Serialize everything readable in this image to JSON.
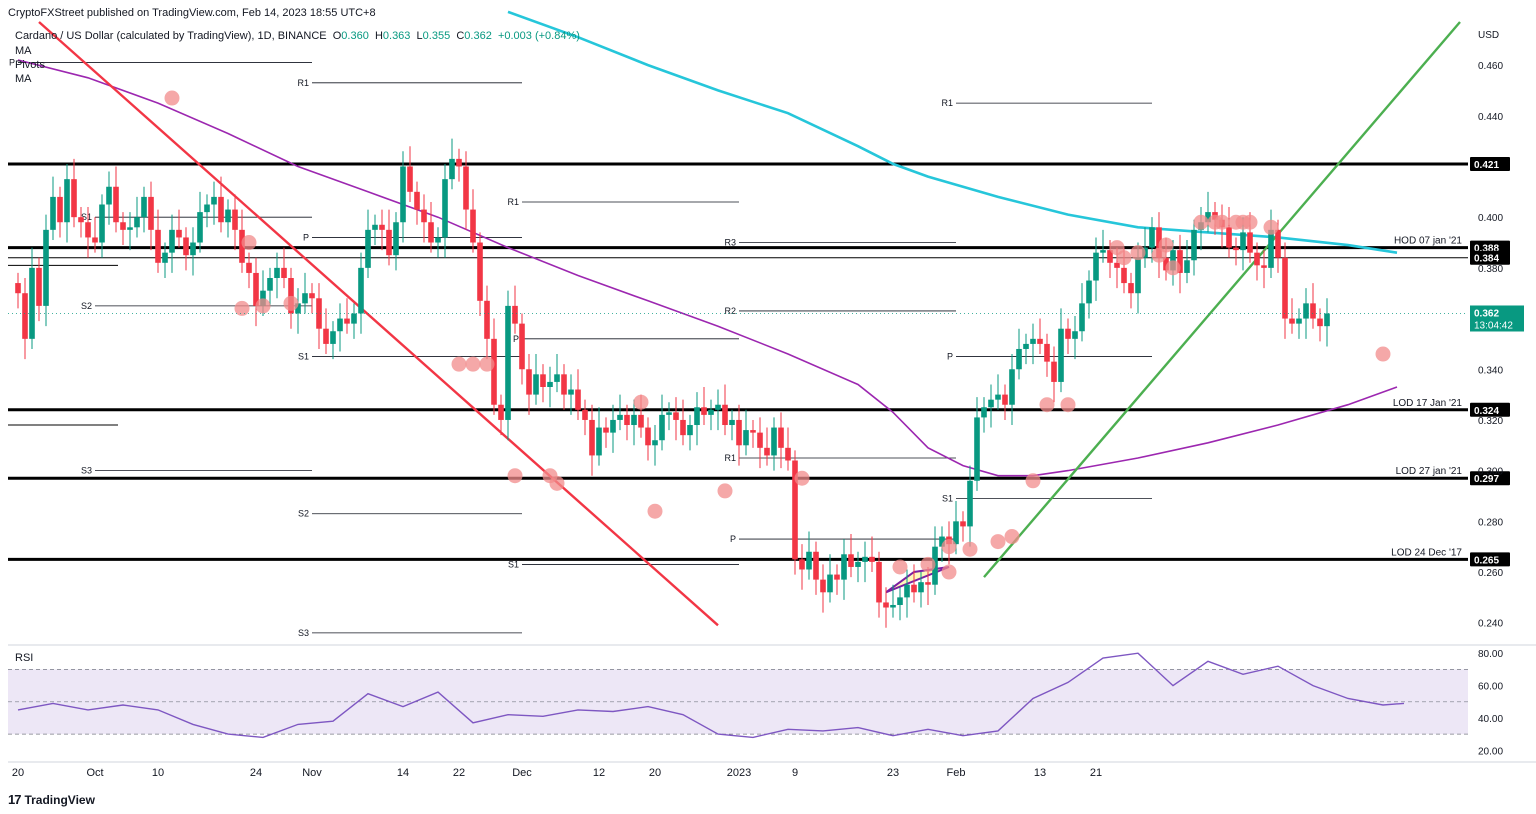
{
  "header": {
    "published": "CryptoFXStreet published on TradingView.com, Feb 14, 2023 18:55 UTC+8",
    "symbol": "Cardano / US Dollar (calculated by TradingView), 1D, BINANCE",
    "o_label": "O",
    "o": "0.360",
    "h_label": "H",
    "h": "0.363",
    "l_label": "L",
    "l": "0.355",
    "c_label": "C",
    "c": "0.362",
    "change": "+0.003 (+0.84%)",
    "indicators": [
      "MA",
      "Pivots",
      "MA"
    ]
  },
  "brand": {
    "logo": "17",
    "name": "TradingView"
  },
  "colors": {
    "up": "#089981",
    "down": "#f23645",
    "ma_fast": "#9c27b0",
    "ma_slow": "#26c6da",
    "trend_down": "#f23645",
    "trend_up": "#4caf50",
    "circle": "#f28b8b",
    "rsi": "#7e57c2",
    "rsi_band": "#ede7f6"
  },
  "chart_data": {
    "type": "candlestick",
    "currency": "USD",
    "ylim": [
      0.232,
      0.477
    ],
    "y_ticks": [
      "0.460",
      "0.440",
      "0.400",
      "0.380",
      "0.340",
      "0.320",
      "0.300",
      "0.280",
      "0.260",
      "0.240"
    ],
    "x_ticks": [
      "20",
      "Oct",
      "10",
      "24",
      "Nov",
      "14",
      "22",
      "Dec",
      "12",
      "20",
      "2023",
      "9",
      "23",
      "Feb",
      "13",
      "21"
    ],
    "x_tick_dates": [
      "2022-09-20",
      "2022-10-01",
      "2022-10-10",
      "2022-10-24",
      "2022-11-01",
      "2022-11-14",
      "2022-11-22",
      "2022-12-01",
      "2022-12-12",
      "2022-12-20",
      "2023-01-01",
      "2023-01-09",
      "2023-01-23",
      "2023-02-01",
      "2023-02-13",
      "2023-02-21"
    ],
    "first_date": "2022-09-20",
    "last_price": {
      "value": 0.362,
      "label": "0.362",
      "countdown": "13:04:42"
    },
    "key_levels": [
      {
        "value": 0.421,
        "label": "0.421",
        "note": ""
      },
      {
        "value": 0.388,
        "label": "0.388",
        "note": "HOD 07 jan '21"
      },
      {
        "value": 0.384,
        "label": "0.384",
        "note": ""
      },
      {
        "value": 0.324,
        "label": "0.324",
        "note": "LOD 17 Jan '21"
      },
      {
        "value": 0.297,
        "label": "0.297",
        "note": "LOD 27 jan '21"
      },
      {
        "value": 0.265,
        "label": "0.265",
        "note": "LOD 24 Dec '17"
      }
    ],
    "pivots": [
      {
        "label": "P",
        "value": 0.461,
        "from": "2022-09-20",
        "to": "2022-11-01"
      },
      {
        "label": "S1",
        "value": 0.4,
        "from": "2022-10-01",
        "to": "2022-11-01"
      },
      {
        "label": "S2",
        "value": 0.365,
        "from": "2022-10-01",
        "to": "2022-11-01"
      },
      {
        "label": "S3",
        "value": 0.3,
        "from": "2022-10-01",
        "to": "2022-11-01"
      },
      {
        "label": "R1",
        "value": 0.453,
        "from": "2022-11-01",
        "to": "2022-12-01"
      },
      {
        "label": "P",
        "value": 0.392,
        "from": "2022-11-01",
        "to": "2022-12-01"
      },
      {
        "label": "S1",
        "value": 0.345,
        "from": "2022-11-01",
        "to": "2022-12-01"
      },
      {
        "label": "S2",
        "value": 0.283,
        "from": "2022-11-01",
        "to": "2022-12-01"
      },
      {
        "label": "S3",
        "value": 0.236,
        "from": "2022-11-01",
        "to": "2022-12-01"
      },
      {
        "label": "R1",
        "value": 0.406,
        "from": "2022-12-01",
        "to": "2023-01-01"
      },
      {
        "label": "P",
        "value": 0.352,
        "from": "2022-12-01",
        "to": "2023-01-01"
      },
      {
        "label": "S1",
        "value": 0.263,
        "from": "2022-12-01",
        "to": "2023-01-01"
      },
      {
        "label": "R3",
        "value": 0.39,
        "from": "2023-01-01",
        "to": "2023-02-01"
      },
      {
        "label": "R2",
        "value": 0.363,
        "from": "2023-01-01",
        "to": "2023-02-01"
      },
      {
        "label": "R1",
        "value": 0.305,
        "from": "2023-01-01",
        "to": "2023-02-01"
      },
      {
        "label": "P",
        "value": 0.273,
        "from": "2023-01-01",
        "to": "2023-02-01"
      },
      {
        "label": "R1",
        "value": 0.445,
        "from": "2023-02-01",
        "to": "2023-03-01"
      },
      {
        "label": "P",
        "value": 0.345,
        "from": "2023-02-01",
        "to": "2023-03-01"
      },
      {
        "label": "S1",
        "value": 0.289,
        "from": "2023-02-01",
        "to": "2023-03-01"
      }
    ],
    "series": [
      {
        "name": "",
        "kind": "candles",
        "closes": [
          0.37,
          0.352,
          0.38,
          0.365,
          0.395,
          0.408,
          0.398,
          0.415,
          0.4,
          0.398,
          0.392,
          0.39,
          0.405,
          0.412,
          0.398,
          0.395,
          0.396,
          0.4,
          0.408,
          0.395,
          0.382,
          0.386,
          0.395,
          0.392,
          0.385,
          0.39,
          0.402,
          0.405,
          0.408,
          0.398,
          0.403,
          0.395,
          0.382,
          0.378,
          0.365,
          0.371,
          0.376,
          0.38,
          0.376,
          0.362,
          0.366,
          0.37,
          0.368,
          0.356,
          0.35,
          0.355,
          0.36,
          0.358,
          0.362,
          0.38,
          0.395,
          0.397,
          0.395,
          0.385,
          0.398,
          0.42,
          0.41,
          0.403,
          0.398,
          0.39,
          0.392,
          0.415,
          0.423,
          0.42,
          0.403,
          0.39,
          0.367,
          0.352,
          0.326,
          0.32,
          0.365,
          0.358,
          0.34,
          0.33,
          0.338,
          0.333,
          0.335,
          0.338,
          0.33,
          0.332,
          0.324,
          0.32,
          0.306,
          0.317,
          0.315,
          0.32,
          0.322,
          0.318,
          0.322,
          0.317,
          0.31,
          0.312,
          0.322,
          0.323,
          0.32,
          0.314,
          0.318,
          0.325,
          0.322,
          0.324,
          0.326,
          0.318,
          0.32,
          0.31,
          0.316,
          0.315,
          0.309,
          0.306,
          0.317,
          0.309,
          0.304,
          0.265,
          0.261,
          0.268,
          0.257,
          0.252,
          0.259,
          0.257,
          0.267,
          0.262,
          0.264,
          0.266,
          0.264,
          0.248,
          0.246,
          0.247,
          0.25,
          0.255,
          0.252,
          0.256,
          0.255,
          0.27,
          0.274,
          0.271,
          0.28,
          0.278,
          0.296,
          0.321,
          0.325,
          0.328,
          0.33,
          0.326,
          0.34,
          0.348,
          0.35,
          0.352,
          0.35,
          0.343,
          0.335,
          0.356,
          0.352,
          0.355,
          0.366,
          0.375,
          0.386,
          0.387,
          0.382,
          0.38,
          0.374,
          0.37,
          0.384,
          0.388,
          0.396,
          0.384,
          0.379,
          0.387,
          0.378,
          0.383,
          0.395,
          0.398,
          0.402,
          0.399,
          0.396,
          0.388,
          0.387,
          0.394,
          0.386,
          0.381,
          0.38,
          0.395,
          0.384,
          0.36,
          0.358,
          0.36,
          0.366,
          0.36,
          0.357,
          0.362
        ]
      },
      {
        "name": "",
        "kind": "ma50",
        "points": [
          [
            0,
            0.462
          ],
          [
            10,
            0.455
          ],
          [
            20,
            0.445
          ],
          [
            30,
            0.433
          ],
          [
            40,
            0.42
          ],
          [
            50,
            0.41
          ],
          [
            60,
            0.4
          ],
          [
            70,
            0.388
          ],
          [
            80,
            0.377
          ],
          [
            90,
            0.367
          ],
          [
            100,
            0.357
          ],
          [
            110,
            0.346
          ],
          [
            120,
            0.334
          ],
          [
            125,
            0.323
          ],
          [
            130,
            0.309
          ],
          [
            135,
            0.302
          ],
          [
            140,
            0.298
          ],
          [
            145,
            0.298
          ],
          [
            150,
            0.3
          ],
          [
            160,
            0.305
          ],
          [
            170,
            0.311
          ],
          [
            180,
            0.318
          ],
          [
            190,
            0.326
          ],
          [
            197,
            0.333
          ]
        ]
      },
      {
        "name": "",
        "kind": "ma200",
        "points": [
          [
            70,
            0.481
          ],
          [
            80,
            0.471
          ],
          [
            90,
            0.46
          ],
          [
            100,
            0.45
          ],
          [
            110,
            0.441
          ],
          [
            120,
            0.428
          ],
          [
            125,
            0.421
          ],
          [
            130,
            0.416
          ],
          [
            140,
            0.408
          ],
          [
            150,
            0.401
          ],
          [
            160,
            0.396
          ],
          [
            170,
            0.394
          ],
          [
            180,
            0.392
          ],
          [
            190,
            0.389
          ],
          [
            197,
            0.386
          ]
        ]
      }
    ],
    "trendlines": [
      {
        "name": "down",
        "points": [
          [
            3,
            0.477
          ],
          [
            100,
            0.239
          ]
        ]
      },
      {
        "name": "up",
        "points": [
          [
            138,
            0.258
          ],
          [
            206,
            0.477
          ]
        ]
      }
    ],
    "triangle": {
      "points": [
        [
          124,
          0.252
        ],
        [
          133,
          0.262
        ],
        [
          128,
          0.26
        ]
      ]
    },
    "touch_circles": [
      [
        22,
        0.447
      ],
      [
        33,
        0.39
      ],
      [
        32,
        0.364
      ],
      [
        35,
        0.365
      ],
      [
        39,
        0.366
      ],
      [
        63,
        0.342
      ],
      [
        65,
        0.342
      ],
      [
        67,
        0.342
      ],
      [
        71,
        0.298
      ],
      [
        76,
        0.298
      ],
      [
        77,
        0.295
      ],
      [
        89,
        0.327
      ],
      [
        91,
        0.284
      ],
      [
        101,
        0.292
      ],
      [
        112,
        0.297
      ],
      [
        126,
        0.262
      ],
      [
        130,
        0.263
      ],
      [
        133,
        0.26
      ],
      [
        133,
        0.27
      ],
      [
        136,
        0.269
      ],
      [
        140,
        0.272
      ],
      [
        142,
        0.274
      ],
      [
        145,
        0.296
      ],
      [
        147,
        0.326
      ],
      [
        150,
        0.326
      ],
      [
        157,
        0.388
      ],
      [
        158,
        0.384
      ],
      [
        160,
        0.386
      ],
      [
        163,
        0.385
      ],
      [
        164,
        0.389
      ],
      [
        165,
        0.38
      ],
      [
        169,
        0.398
      ],
      [
        171,
        0.398
      ],
      [
        172,
        0.398
      ],
      [
        174,
        0.398
      ],
      [
        175,
        0.398
      ],
      [
        176,
        0.398
      ],
      [
        179,
        0.396
      ],
      [
        195,
        0.346
      ]
    ],
    "rsi": {
      "label": "RSI",
      "ylim": [
        14,
        82
      ],
      "y_ticks": [
        "80.00",
        "60.00",
        "40.00",
        "20.00"
      ],
      "band": [
        30,
        70
      ],
      "points": [
        [
          0,
          45
        ],
        [
          5,
          49
        ],
        [
          10,
          45
        ],
        [
          15,
          48
        ],
        [
          20,
          45
        ],
        [
          25,
          36
        ],
        [
          30,
          30
        ],
        [
          35,
          28
        ],
        [
          40,
          36
        ],
        [
          45,
          38
        ],
        [
          50,
          55
        ],
        [
          55,
          47
        ],
        [
          60,
          56
        ],
        [
          65,
          37
        ],
        [
          70,
          42
        ],
        [
          75,
          41
        ],
        [
          80,
          45
        ],
        [
          85,
          44
        ],
        [
          90,
          47
        ],
        [
          95,
          42
        ],
        [
          100,
          30
        ],
        [
          105,
          28
        ],
        [
          110,
          33
        ],
        [
          115,
          32
        ],
        [
          120,
          34
        ],
        [
          125,
          29
        ],
        [
          130,
          33
        ],
        [
          135,
          29
        ],
        [
          140,
          32
        ],
        [
          145,
          52
        ],
        [
          150,
          62
        ],
        [
          155,
          77
        ],
        [
          160,
          80
        ],
        [
          165,
          60
        ],
        [
          170,
          75
        ],
        [
          175,
          67
        ],
        [
          180,
          72
        ],
        [
          185,
          60
        ],
        [
          190,
          52
        ],
        [
          195,
          48
        ],
        [
          198,
          49
        ]
      ]
    }
  }
}
